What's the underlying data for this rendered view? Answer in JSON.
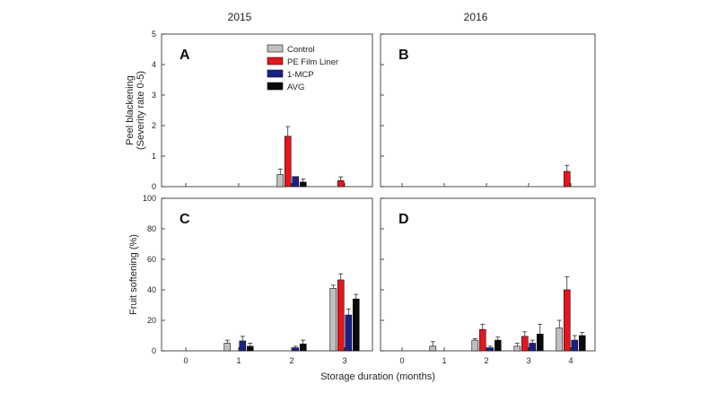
{
  "header": {
    "year_left": "2015",
    "year_right": "2016"
  },
  "colors": {
    "Control": "#c0c0c0",
    "PE Film Liner": "#e8141c",
    "1-MCP": "#1a1f8c",
    "AVG": "#0a0a0a"
  },
  "chart_data": [
    {
      "type": "bar",
      "panel": "A",
      "year": "2015",
      "categories": [
        "0",
        "1",
        "2",
        "3"
      ],
      "ylabel": "Peel blackening (Severity rate 0-5)",
      "xlabel": "",
      "ylim": [
        0,
        5
      ],
      "yticks": [
        0,
        1,
        2,
        3,
        4,
        5
      ],
      "series": [
        {
          "name": "Control",
          "values": [
            0,
            0,
            0.4,
            0
          ],
          "errors": [
            0,
            0,
            0.18,
            0
          ]
        },
        {
          "name": "PE Film Liner",
          "values": [
            0,
            0,
            1.65,
            0.2
          ],
          "errors": [
            0,
            0,
            0.32,
            0.12
          ]
        },
        {
          "name": "1-MCP",
          "values": [
            0,
            0,
            0.33,
            0
          ],
          "errors": [
            0,
            0,
            0,
            0
          ]
        },
        {
          "name": "AVG",
          "values": [
            0,
            0,
            0.15,
            0
          ],
          "errors": [
            0,
            0,
            0.1,
            0
          ]
        }
      ]
    },
    {
      "type": "bar",
      "panel": "B",
      "year": "2016",
      "categories": [
        "0",
        "1",
        "2",
        "3",
        "4"
      ],
      "ylabel": "",
      "xlabel": "",
      "ylim": [
        0,
        5
      ],
      "yticks": [],
      "series": [
        {
          "name": "Control",
          "values": [
            0,
            0,
            0,
            0,
            0
          ],
          "errors": [
            0,
            0,
            0,
            0,
            0
          ]
        },
        {
          "name": "PE Film Liner",
          "values": [
            0,
            0,
            0,
            0,
            0.5
          ],
          "errors": [
            0,
            0,
            0,
            0,
            0.2
          ]
        },
        {
          "name": "1-MCP",
          "values": [
            0,
            0,
            0,
            0,
            0
          ],
          "errors": [
            0,
            0,
            0,
            0,
            0
          ]
        },
        {
          "name": "AVG",
          "values": [
            0,
            0,
            0,
            0,
            0
          ],
          "errors": [
            0,
            0,
            0,
            0,
            0
          ]
        }
      ]
    },
    {
      "type": "bar",
      "panel": "C",
      "year": "2015",
      "categories": [
        "0",
        "1",
        "2",
        "3"
      ],
      "ylabel": "Fruit softening (%)",
      "xlabel": "Storage duration (months)",
      "ylim": [
        0,
        100
      ],
      "yticks": [
        0,
        20,
        40,
        60,
        80,
        100
      ],
      "series": [
        {
          "name": "Control",
          "values": [
            0,
            5,
            0,
            41
          ],
          "errors": [
            0,
            2,
            0,
            2
          ]
        },
        {
          "name": "PE Film Liner",
          "values": [
            0,
            0,
            0,
            46.5
          ],
          "errors": [
            0,
            0,
            0,
            4
          ]
        },
        {
          "name": "1-MCP",
          "values": [
            0,
            6.5,
            2,
            23.5
          ],
          "errors": [
            0,
            3,
            1,
            4
          ]
        },
        {
          "name": "AVG",
          "values": [
            0,
            3,
            4.5,
            34
          ],
          "errors": [
            0,
            2,
            2.5,
            3
          ]
        }
      ]
    },
    {
      "type": "bar",
      "panel": "D",
      "year": "2016",
      "categories": [
        "0",
        "1",
        "2",
        "3",
        "4"
      ],
      "ylabel": "",
      "xlabel": "Storage duration (months)",
      "ylim": [
        0,
        100
      ],
      "yticks": [],
      "series": [
        {
          "name": "Control",
          "values": [
            0,
            3,
            7,
            3,
            15
          ],
          "errors": [
            0,
            3,
            1,
            2,
            5
          ]
        },
        {
          "name": "PE Film Liner",
          "values": [
            0,
            0,
            14,
            9.5,
            40
          ],
          "errors": [
            0,
            0,
            3.5,
            3,
            8.5
          ]
        },
        {
          "name": "1-MCP",
          "values": [
            0,
            0,
            2,
            5,
            7
          ],
          "errors": [
            0,
            0,
            1,
            2,
            3
          ]
        },
        {
          "name": "AVG",
          "values": [
            0,
            0,
            7,
            11,
            10
          ],
          "errors": [
            0,
            0,
            2,
            6.5,
            2
          ]
        }
      ]
    }
  ],
  "legend": {
    "entries": [
      "Control",
      "PE Film Liner",
      "1-MCP",
      "AVG"
    ]
  },
  "xaxis": {
    "title": "Storage duration (months)"
  }
}
